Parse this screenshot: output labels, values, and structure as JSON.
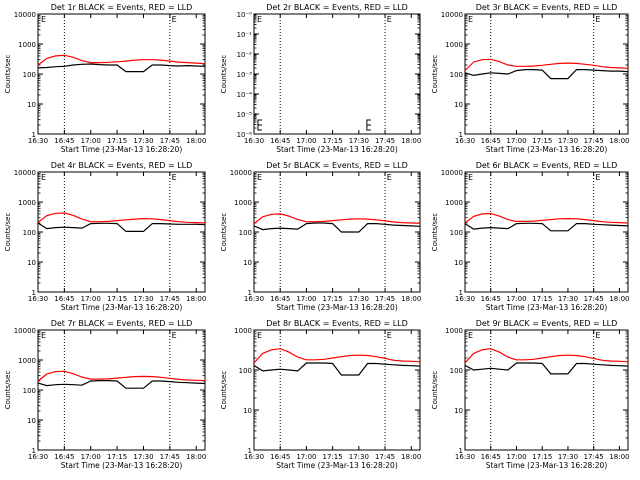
{
  "figure": {
    "panel_titles": [
      "Det 1r BLACK = Events, RED = LLD",
      "Det 2r BLACK = Events, RED = LLD",
      "Det 3r BLACK = Events, RED = LLD",
      "Det 4r BLACK = Events, RED = LLD",
      "Det 5r BLACK = Events, RED = LLD",
      "Det 6r BLACK = Events, RED = LLD",
      "Det 7r BLACK = Events, RED = LLD",
      "Det 8r BLACK = Events, RED = LLD",
      "Det 9r BLACK = Events, RED = LLD"
    ],
    "xlabel": "Start Time (23-Mar-13 16:28:20)",
    "ylabel": "Counts/sec",
    "x_ticks": [
      "16:30",
      "16:45",
      "17:00",
      "17:15",
      "17:30",
      "17:45",
      "18:00"
    ],
    "y_ticks_log": [
      "1",
      "10",
      "100",
      "1000",
      "10000"
    ],
    "y_ticks_det2": [
      "10⁻⁰",
      "10⁻¹",
      "10⁻²",
      "10⁻³",
      "10⁻⁴",
      "10⁻⁵",
      "10⁻⁶"
    ],
    "marker_letter": "E",
    "colors": {
      "events": "#000000",
      "lld": "#ff0000",
      "axis": "#000000",
      "background": "#ffffff"
    }
  },
  "chart_data": [
    {
      "type": "line",
      "panel": "Det 1r",
      "x": [
        "16:30",
        "16:35",
        "16:40",
        "16:45",
        "16:50",
        "16:55",
        "17:00",
        "17:05",
        "17:10",
        "17:15",
        "17:20",
        "17:25",
        "17:30",
        "17:35",
        "17:40",
        "17:45",
        "17:50",
        "17:55",
        "18:00",
        "18:05"
      ],
      "ylim": [
        1,
        10000
      ],
      "yscale": "log",
      "series": [
        {
          "name": "BLACK = Events",
          "values": [
            160,
            165,
            175,
            180,
            200,
            210,
            215,
            205,
            200,
            200,
            120,
            120,
            120,
            200,
            200,
            190,
            185,
            190,
            185,
            180
          ]
        },
        {
          "name": "RED = LLD",
          "values": [
            200,
            330,
            400,
            420,
            360,
            280,
            240,
            240,
            245,
            255,
            270,
            290,
            300,
            300,
            290,
            270,
            250,
            240,
            230,
            220
          ]
        }
      ],
      "vlines": [
        "16:45",
        "17:45",
        "18:05"
      ]
    },
    {
      "type": "line",
      "panel": "Det 2r",
      "x": [
        "16:30",
        "18:05"
      ],
      "ylim": [
        1e-06,
        1
      ],
      "yscale": "log",
      "series": [],
      "vlines": [
        "16:45",
        "17:45",
        "18:05"
      ]
    },
    {
      "type": "line",
      "panel": "Det 3r",
      "x": [
        "16:30",
        "16:35",
        "16:40",
        "16:45",
        "16:50",
        "16:55",
        "17:00",
        "17:05",
        "17:10",
        "17:15",
        "17:20",
        "17:25",
        "17:30",
        "17:35",
        "17:40",
        "17:45",
        "17:50",
        "17:55",
        "18:00",
        "18:05"
      ],
      "ylim": [
        1,
        10000
      ],
      "yscale": "log",
      "series": [
        {
          "name": "BLACK = Events",
          "values": [
            110,
            90,
            100,
            110,
            105,
            100,
            130,
            140,
            140,
            135,
            70,
            70,
            70,
            140,
            140,
            135,
            130,
            125,
            125,
            120
          ]
        },
        {
          "name": "RED = LLD",
          "values": [
            130,
            250,
            300,
            310,
            260,
            200,
            180,
            180,
            185,
            195,
            210,
            225,
            230,
            225,
            210,
            195,
            175,
            165,
            160,
            155
          ]
        }
      ],
      "vlines": [
        "16:45",
        "17:45",
        "18:05"
      ]
    },
    {
      "type": "line",
      "panel": "Det 4r",
      "x": [
        "16:30",
        "16:35",
        "16:40",
        "16:45",
        "16:50",
        "16:55",
        "17:00",
        "17:05",
        "17:10",
        "17:15",
        "17:20",
        "17:25",
        "17:30",
        "17:35",
        "17:40",
        "17:45",
        "17:50",
        "17:55",
        "18:00",
        "18:05"
      ],
      "ylim": [
        1,
        10000
      ],
      "yscale": "log",
      "series": [
        {
          "name": "BLACK = Events",
          "values": [
            200,
            130,
            140,
            145,
            140,
            135,
            190,
            195,
            195,
            190,
            105,
            105,
            105,
            190,
            190,
            185,
            180,
            180,
            180,
            175
          ]
        },
        {
          "name": "RED = LLD",
          "values": [
            210,
            350,
            420,
            430,
            360,
            270,
            220,
            220,
            225,
            240,
            255,
            270,
            280,
            275,
            260,
            240,
            220,
            210,
            205,
            200
          ]
        }
      ],
      "vlines": [
        "16:45",
        "17:45",
        "18:05"
      ]
    },
    {
      "type": "line",
      "panel": "Det 5r",
      "x": [
        "16:30",
        "16:35",
        "16:40",
        "16:45",
        "16:50",
        "16:55",
        "17:00",
        "17:05",
        "17:10",
        "17:15",
        "17:20",
        "17:25",
        "17:30",
        "17:35",
        "17:40",
        "17:45",
        "17:50",
        "17:55",
        "18:00",
        "18:05"
      ],
      "ylim": [
        1,
        10000
      ],
      "yscale": "log",
      "series": [
        {
          "name": "BLACK = Events",
          "values": [
            160,
            120,
            130,
            135,
            130,
            125,
            190,
            200,
            200,
            190,
            100,
            100,
            100,
            190,
            190,
            180,
            170,
            165,
            160,
            155
          ]
        },
        {
          "name": "RED = LLD",
          "values": [
            190,
            320,
            390,
            400,
            340,
            260,
            220,
            220,
            225,
            240,
            255,
            270,
            275,
            270,
            255,
            235,
            215,
            205,
            200,
            195
          ]
        }
      ],
      "vlines": [
        "16:45",
        "17:45",
        "18:05"
      ]
    },
    {
      "type": "line",
      "panel": "Det 6r",
      "x": [
        "16:30",
        "16:35",
        "16:40",
        "16:45",
        "16:50",
        "16:55",
        "17:00",
        "17:05",
        "17:10",
        "17:15",
        "17:20",
        "17:25",
        "17:30",
        "17:35",
        "17:40",
        "17:45",
        "17:50",
        "17:55",
        "18:00",
        "18:05"
      ],
      "ylim": [
        1,
        10000
      ],
      "yscale": "log",
      "series": [
        {
          "name": "BLACK = Events",
          "values": [
            190,
            125,
            135,
            140,
            135,
            130,
            190,
            195,
            195,
            190,
            110,
            110,
            110,
            190,
            190,
            180,
            175,
            170,
            165,
            160
          ]
        },
        {
          "name": "RED = LLD",
          "values": [
            200,
            330,
            400,
            410,
            340,
            260,
            225,
            225,
            230,
            245,
            260,
            275,
            280,
            275,
            260,
            240,
            220,
            210,
            205,
            200
          ]
        }
      ],
      "vlines": [
        "16:45",
        "17:45",
        "18:05"
      ]
    },
    {
      "type": "line",
      "panel": "Det 7r",
      "x": [
        "16:30",
        "16:35",
        "16:40",
        "16:45",
        "16:50",
        "16:55",
        "17:00",
        "17:05",
        "17:10",
        "17:15",
        "17:20",
        "17:25",
        "17:30",
        "17:35",
        "17:40",
        "17:45",
        "17:50",
        "17:55",
        "18:00",
        "18:05"
      ],
      "ylim": [
        1,
        10000
      ],
      "yscale": "log",
      "series": [
        {
          "name": "BLACK = Events",
          "values": [
            170,
            140,
            150,
            155,
            150,
            145,
            200,
            205,
            205,
            200,
            115,
            115,
            115,
            200,
            200,
            190,
            180,
            175,
            170,
            165
          ]
        },
        {
          "name": "RED = LLD",
          "values": [
            200,
            340,
            410,
            420,
            350,
            270,
            230,
            230,
            235,
            250,
            265,
            280,
            285,
            280,
            265,
            245,
            225,
            215,
            210,
            205
          ]
        }
      ],
      "vlines": [
        "16:45",
        "17:45",
        "18:05"
      ]
    },
    {
      "type": "line",
      "panel": "Det 8r",
      "x": [
        "16:30",
        "16:35",
        "16:40",
        "16:45",
        "16:50",
        "16:55",
        "17:00",
        "17:05",
        "17:10",
        "17:15",
        "17:20",
        "17:25",
        "17:30",
        "17:35",
        "17:40",
        "17:45",
        "17:50",
        "17:55",
        "18:00",
        "18:05"
      ],
      "ylim": [
        1,
        1000
      ],
      "yscale": "log",
      "series": [
        {
          "name": "BLACK = Events",
          "values": [
            130,
            95,
            100,
            105,
            100,
            95,
            150,
            150,
            150,
            145,
            75,
            75,
            75,
            145,
            145,
            140,
            135,
            130,
            128,
            125
          ]
        },
        {
          "name": "RED = LLD",
          "values": [
            150,
            260,
            320,
            340,
            280,
            210,
            180,
            180,
            185,
            200,
            215,
            230,
            235,
            230,
            215,
            195,
            175,
            168,
            165,
            160
          ]
        }
      ],
      "vlines": [
        "16:45",
        "17:45",
        "18:05"
      ]
    },
    {
      "type": "line",
      "panel": "Det 9r",
      "x": [
        "16:30",
        "16:35",
        "16:40",
        "16:45",
        "16:50",
        "16:55",
        "17:00",
        "17:05",
        "17:10",
        "17:15",
        "17:20",
        "17:25",
        "17:30",
        "17:35",
        "17:40",
        "17:45",
        "17:50",
        "17:55",
        "18:00",
        "18:05"
      ],
      "ylim": [
        1,
        1000
      ],
      "yscale": "log",
      "series": [
        {
          "name": "BLACK = Events",
          "values": [
            130,
            100,
            105,
            110,
            105,
            100,
            150,
            150,
            150,
            145,
            80,
            80,
            80,
            145,
            145,
            140,
            135,
            130,
            128,
            125
          ]
        },
        {
          "name": "RED = LLD",
          "values": [
            150,
            260,
            320,
            340,
            280,
            210,
            180,
            180,
            185,
            200,
            215,
            230,
            235,
            230,
            215,
            195,
            175,
            168,
            165,
            160
          ]
        }
      ],
      "vlines": [
        "16:45",
        "17:45",
        "18:05"
      ]
    }
  ]
}
